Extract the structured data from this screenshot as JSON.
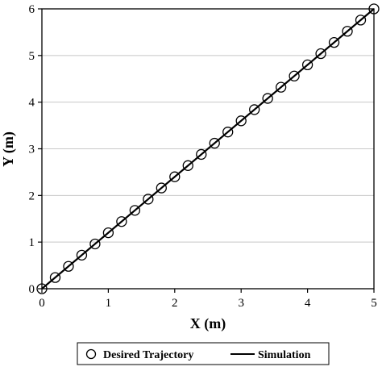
{
  "chart_data": {
    "type": "line",
    "xlabel": "X (m)",
    "ylabel": "Y (m)",
    "xlim": [
      0,
      5
    ],
    "ylim": [
      0,
      6
    ],
    "xticks": [
      "0",
      "1",
      "2",
      "3",
      "4",
      "5"
    ],
    "yticks": [
      "0",
      "1",
      "2",
      "3",
      "4",
      "5",
      "6"
    ],
    "grid": "horizontal",
    "legend_position": "bottom",
    "series": [
      {
        "name": "Desired Trajectory",
        "style": "markers-open-circle",
        "color": "#000000",
        "x": [
          0,
          0.2,
          0.4,
          0.6,
          0.8,
          1.0,
          1.2,
          1.4,
          1.6,
          1.8,
          2.0,
          2.2,
          2.4,
          2.6,
          2.8,
          3.0,
          3.2,
          3.4,
          3.6,
          3.8,
          4.0,
          4.2,
          4.4,
          4.6,
          4.8,
          5.0
        ],
        "y": [
          0,
          0.24,
          0.48,
          0.72,
          0.96,
          1.2,
          1.44,
          1.68,
          1.92,
          2.16,
          2.4,
          2.64,
          2.88,
          3.12,
          3.36,
          3.6,
          3.84,
          4.08,
          4.32,
          4.56,
          4.8,
          5.04,
          5.28,
          5.52,
          5.76,
          6.0
        ]
      },
      {
        "name": "Simulation",
        "style": "solid-line",
        "color": "#000000",
        "x": [
          0,
          5
        ],
        "y": [
          0,
          6
        ]
      }
    ]
  }
}
